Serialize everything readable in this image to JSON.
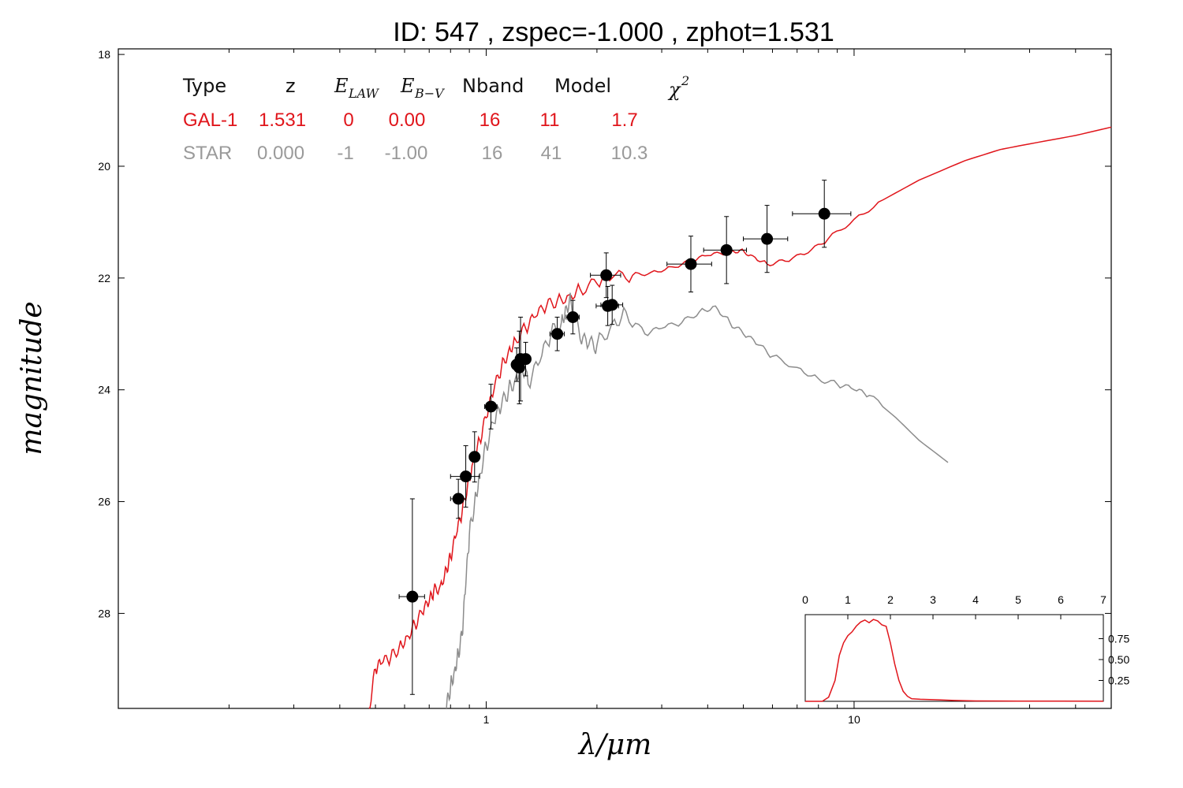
{
  "title": "ID:  547   , zspec=-1.000 , zphot=1.531",
  "colors": {
    "galaxy": "#e0151b",
    "star": "#8c8c8c",
    "points": "#000000"
  },
  "table": {
    "headers": {
      "type": "Type",
      "z": "z",
      "elaw_base": "E",
      "elaw_sub": "LAW",
      "ebv_base": "E",
      "ebv_sub": "B−V",
      "nband": "Nband",
      "model": "Model",
      "chi_base": "χ",
      "chi_sup": "2"
    },
    "rows": [
      {
        "type": "GAL-1",
        "z": "1.531",
        "elaw": "0",
        "ebv": "0.00",
        "nband": "16",
        "model": "11",
        "chi2": "1.7"
      },
      {
        "type": "STAR",
        "z": "0.000",
        "elaw": "-1",
        "ebv": "-1.00",
        "nband": "16",
        "model": "41",
        "chi2": "10.3"
      }
    ]
  },
  "chart_data": [
    {
      "type": "line",
      "xlabel": "λ/μm",
      "ylabel": "magnitude",
      "x_scale": "log",
      "xlim": [
        0.1,
        50
      ],
      "ylim": [
        29.7,
        17.9
      ],
      "y_inverted": true,
      "x_tick_labels": [
        "1",
        "10"
      ],
      "y_tick_labels": [
        "18",
        "20",
        "22",
        "24",
        "26",
        "28"
      ],
      "series": [
        {
          "name": "GAL-1",
          "color": "#e0151b",
          "x": [
            0.48,
            0.5,
            0.52,
            0.55,
            0.58,
            0.61,
            0.64,
            0.67,
            0.7,
            0.72,
            0.75,
            0.78,
            0.8,
            0.83,
            0.86,
            0.89,
            0.92,
            0.96,
            1.0,
            1.05,
            1.1,
            1.15,
            1.2,
            1.28,
            1.36,
            1.46,
            1.56,
            1.68,
            1.8,
            2.0,
            2.2,
            2.5,
            2.8,
            3.2,
            3.6,
            4.0,
            4.5,
            4.9,
            5.3,
            5.8,
            6.5,
            7.5,
            8.5,
            10.0,
            12.0,
            15.0,
            20.0,
            25.0,
            30.0,
            40.0,
            50.0
          ],
          "y": [
            29.7,
            29.0,
            28.9,
            28.8,
            28.6,
            28.4,
            28.2,
            28.0,
            27.8,
            27.6,
            27.5,
            27.2,
            27.0,
            26.6,
            26.2,
            25.7,
            25.3,
            24.9,
            24.5,
            24.0,
            23.6,
            23.3,
            23.1,
            22.9,
            22.7,
            22.5,
            22.4,
            22.3,
            22.2,
            22.1,
            22.0,
            21.95,
            21.9,
            21.8,
            21.7,
            21.6,
            21.55,
            21.5,
            21.6,
            21.75,
            21.7,
            21.55,
            21.3,
            20.95,
            20.6,
            20.25,
            19.9,
            19.7,
            19.6,
            19.45,
            19.3
          ]
        },
        {
          "name": "STAR",
          "color": "#8c8c8c",
          "x": [
            0.78,
            0.8,
            0.82,
            0.84,
            0.86,
            0.88,
            0.9,
            0.93,
            0.96,
            1.0,
            1.05,
            1.1,
            1.15,
            1.2,
            1.25,
            1.3,
            1.4,
            1.5,
            1.6,
            1.65,
            1.7,
            1.8,
            1.9,
            2.0,
            2.2,
            2.4,
            2.7,
            3.0,
            3.4,
            3.8,
            4.2,
            4.6,
            5.0,
            5.5,
            6.0,
            7.0,
            8.0,
            9.0,
            10.0,
            11.0,
            13.0,
            15.0,
            18.0
          ],
          "y": [
            29.7,
            29.3,
            29.0,
            28.7,
            28.4,
            27.5,
            26.6,
            26.0,
            25.5,
            25.0,
            24.6,
            24.3,
            24.0,
            23.8,
            23.5,
            23.9,
            23.5,
            23.0,
            22.8,
            22.5,
            22.4,
            23.1,
            23.2,
            23.2,
            22.8,
            22.6,
            23.0,
            22.9,
            22.8,
            22.6,
            22.5,
            22.8,
            23.0,
            23.2,
            23.4,
            23.6,
            23.8,
            23.9,
            24.0,
            24.1,
            24.5,
            24.9,
            25.3
          ]
        }
      ],
      "points": [
        {
          "x": 0.63,
          "y": 27.7,
          "xerr": 0.05,
          "yerr": 1.75
        },
        {
          "x": 0.84,
          "y": 25.95,
          "xerr": 0.04,
          "yerr": 0.35
        },
        {
          "x": 0.88,
          "y": 25.55,
          "xerr": 0.08,
          "yerr": 0.55
        },
        {
          "x": 0.93,
          "y": 25.2,
          "xerr": 0.03,
          "yerr": 0.45
        },
        {
          "x": 1.03,
          "y": 24.3,
          "xerr": 0.04,
          "yerr": 0.4
        },
        {
          "x": 1.21,
          "y": 23.55,
          "xerr": 0.03,
          "yerr": 0.3
        },
        {
          "x": 1.23,
          "y": 23.6,
          "xerr": 0.02,
          "yerr": 0.65
        },
        {
          "x": 1.24,
          "y": 23.45,
          "xerr": 0.03,
          "yerr": 0.75
        },
        {
          "x": 1.28,
          "y": 23.45,
          "xerr": 0.04,
          "yerr": 0.3
        },
        {
          "x": 1.56,
          "y": 23.0,
          "xerr": 0.07,
          "yerr": 0.3
        },
        {
          "x": 1.72,
          "y": 22.7,
          "xerr": 0.07,
          "yerr": 0.3
        },
        {
          "x": 2.12,
          "y": 21.95,
          "xerr": 0.2,
          "yerr": 0.4
        },
        {
          "x": 2.14,
          "y": 22.5,
          "xerr": 0.15,
          "yerr": 0.35
        },
        {
          "x": 2.2,
          "y": 22.48,
          "xerr": 0.15,
          "yerr": 0.35
        },
        {
          "x": 3.6,
          "y": 21.75,
          "xerr": 0.5,
          "yerr": 0.5
        },
        {
          "x": 4.5,
          "y": 21.5,
          "xerr": 0.6,
          "yerr": 0.6
        },
        {
          "x": 5.8,
          "y": 21.3,
          "xerr": 0.8,
          "yerr": 0.6
        },
        {
          "x": 8.3,
          "y": 20.85,
          "xerr": 1.5,
          "yerr": 0.6
        }
      ]
    },
    {
      "type": "line",
      "xlim": [
        0,
        7
      ],
      "ylim": [
        0,
        1
      ],
      "x_tick_labels": [
        "0",
        "1",
        "2",
        "3",
        "4",
        "5",
        "6",
        "7"
      ],
      "y_tick_labels": [
        "0.25",
        "0.50",
        "0.75"
      ],
      "y_ticks": [
        0.25,
        0.5,
        0.75
      ],
      "series": [
        {
          "name": "",
          "color": "#e0151b",
          "x": [
            0,
            0.4,
            0.55,
            0.7,
            0.8,
            0.9,
            1.0,
            1.1,
            1.2,
            1.3,
            1.4,
            1.5,
            1.6,
            1.7,
            1.8,
            1.9,
            2.0,
            2.1,
            2.2,
            2.3,
            2.4,
            2.5,
            2.7,
            3.0,
            3.5,
            4.0,
            5.0,
            6.0,
            7.0
          ],
          "y": [
            0,
            0.0,
            0.05,
            0.25,
            0.55,
            0.7,
            0.8,
            0.85,
            0.9,
            0.93,
            0.96,
            0.95,
            1.0,
            0.97,
            0.9,
            0.88,
            0.7,
            0.45,
            0.25,
            0.12,
            0.06,
            0.03,
            0.025,
            0.02,
            0.01,
            0.005,
            0.003,
            0.002,
            0.001
          ]
        }
      ]
    }
  ]
}
